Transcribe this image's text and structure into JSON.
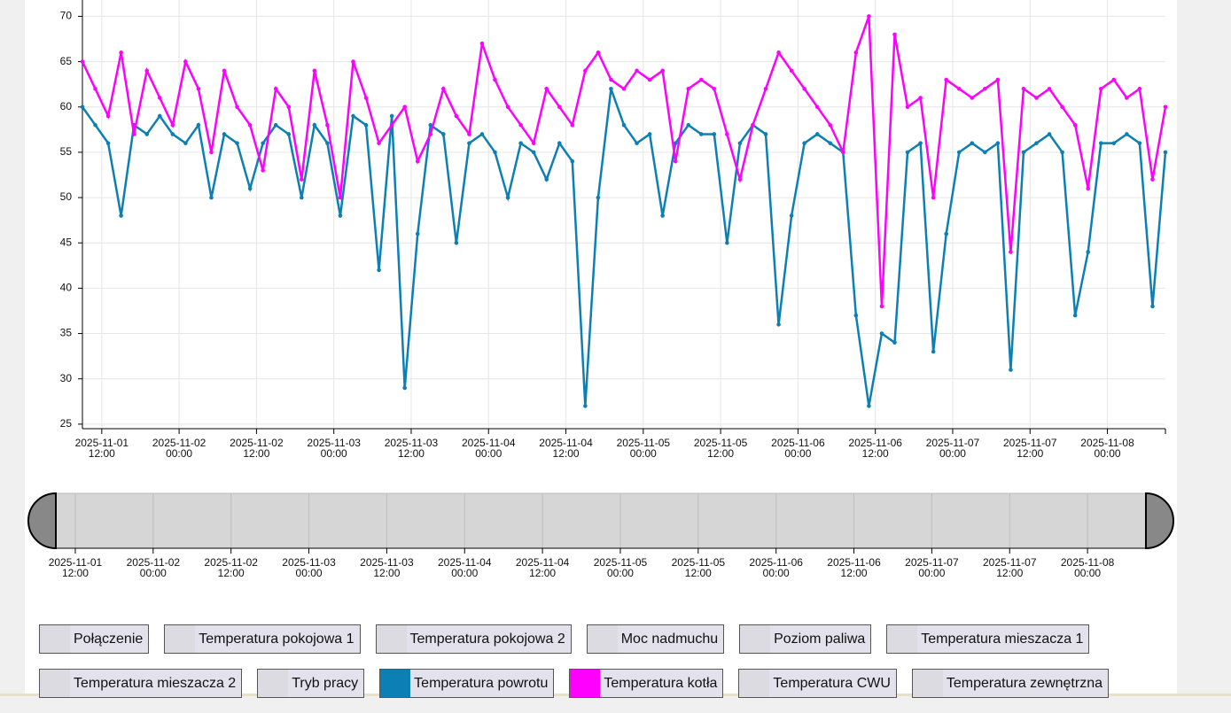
{
  "chart_data": {
    "type": "line",
    "x": [
      "2025-11-01 09:00",
      "2025-11-01 11:00",
      "2025-11-01 13:00",
      "2025-11-01 15:00",
      "2025-11-01 17:00",
      "2025-11-01 19:00",
      "2025-11-01 21:00",
      "2025-11-01 23:00",
      "2025-11-02 01:00",
      "2025-11-02 03:00",
      "2025-11-02 05:00",
      "2025-11-02 07:00",
      "2025-11-02 09:00",
      "2025-11-02 11:00",
      "2025-11-02 13:00",
      "2025-11-02 15:00",
      "2025-11-02 17:00",
      "2025-11-02 19:00",
      "2025-11-02 21:00",
      "2025-11-02 23:00",
      "2025-11-03 01:00",
      "2025-11-03 03:00",
      "2025-11-03 05:00",
      "2025-11-03 07:00",
      "2025-11-03 09:00",
      "2025-11-03 11:00",
      "2025-11-03 13:00",
      "2025-11-03 15:00",
      "2025-11-03 17:00",
      "2025-11-03 19:00",
      "2025-11-03 21:00",
      "2025-11-03 23:00",
      "2025-11-04 01:00",
      "2025-11-04 03:00",
      "2025-11-04 05:00",
      "2025-11-04 07:00",
      "2025-11-04 09:00",
      "2025-11-04 11:00",
      "2025-11-04 13:00",
      "2025-11-04 15:00",
      "2025-11-04 17:00",
      "2025-11-04 19:00",
      "2025-11-04 21:00",
      "2025-11-04 23:00",
      "2025-11-05 01:00",
      "2025-11-05 03:00",
      "2025-11-05 05:00",
      "2025-11-05 07:00",
      "2025-11-05 09:00",
      "2025-11-05 11:00",
      "2025-11-05 13:00",
      "2025-11-05 15:00",
      "2025-11-05 17:00",
      "2025-11-05 19:00",
      "2025-11-05 21:00",
      "2025-11-05 23:00",
      "2025-11-06 01:00",
      "2025-11-06 03:00",
      "2025-11-06 05:00",
      "2025-11-06 07:00",
      "2025-11-06 09:00",
      "2025-11-06 11:00",
      "2025-11-06 13:00",
      "2025-11-06 15:00",
      "2025-11-06 17:00",
      "2025-11-06 19:00",
      "2025-11-06 21:00",
      "2025-11-06 23:00",
      "2025-11-07 01:00",
      "2025-11-07 03:00",
      "2025-11-07 05:00",
      "2025-11-07 07:00",
      "2025-11-07 09:00",
      "2025-11-07 11:00",
      "2025-11-07 13:00",
      "2025-11-07 15:00",
      "2025-11-07 17:00",
      "2025-11-07 19:00",
      "2025-11-07 21:00",
      "2025-11-07 23:00",
      "2025-11-08 01:00",
      "2025-11-08 03:00",
      "2025-11-08 05:00",
      "2025-11-08 07:00",
      "2025-11-08 09:00"
    ],
    "xlim": [
      "2025-11-01 09:00",
      "2025-11-08 09:00"
    ],
    "xticks": [
      "2025-11-01 12:00",
      "2025-11-02 00:00",
      "2025-11-02 12:00",
      "2025-11-03 00:00",
      "2025-11-03 12:00",
      "2025-11-04 00:00",
      "2025-11-04 12:00",
      "2025-11-05 00:00",
      "2025-11-05 12:00",
      "2025-11-06 00:00",
      "2025-11-06 12:00",
      "2025-11-07 00:00",
      "2025-11-07 12:00",
      "2025-11-08 00:00"
    ],
    "ylim": [
      24.5,
      71.8
    ],
    "yticks": [
      25,
      30,
      35,
      40,
      45,
      50,
      55,
      60,
      65,
      70
    ],
    "grid": true,
    "series": [
      {
        "name": "Połączenie",
        "visible": false
      },
      {
        "name": "Temperatura pokojowa 1",
        "visible": false
      },
      {
        "name": "Temperatura pokojowa 2",
        "visible": false
      },
      {
        "name": "Moc nadmuchu",
        "visible": false
      },
      {
        "name": "Poziom paliwa",
        "visible": false
      },
      {
        "name": "Temperatura mieszacza 1",
        "visible": false
      },
      {
        "name": "Temperatura mieszacza 2",
        "visible": false
      },
      {
        "name": "Tryb pracy",
        "visible": false
      },
      {
        "name": "Temperatura powrotu",
        "visible": true,
        "color": "#0c7fb4",
        "values": [
          60,
          58,
          56,
          48,
          58,
          57,
          59,
          57,
          56,
          58,
          50,
          57,
          56,
          51,
          56,
          58,
          57,
          50,
          58,
          56,
          48,
          59,
          58,
          42,
          59,
          29,
          46,
          58,
          57,
          45,
          56,
          57,
          55,
          50,
          56,
          55,
          52,
          56,
          54,
          27,
          50,
          62,
          58,
          56,
          57,
          48,
          56,
          58,
          57,
          57,
          45,
          56,
          58,
          57,
          36,
          48,
          56,
          57,
          56,
          55,
          37,
          27,
          35,
          34,
          55,
          56,
          33,
          46,
          55,
          56,
          55,
          56,
          31,
          55,
          56,
          57,
          55,
          37,
          44,
          56,
          56,
          57,
          56,
          38,
          55
        ]
      },
      {
        "name": "Temperatura kotła",
        "visible": true,
        "color": "#ff00ff",
        "values": [
          65,
          62,
          59,
          66,
          57,
          64,
          61,
          58,
          65,
          62,
          55,
          64,
          60,
          58,
          53,
          62,
          60,
          52,
          64,
          58,
          50,
          65,
          61,
          56,
          58,
          60,
          54,
          57,
          62,
          59,
          57,
          67,
          63,
          60,
          58,
          56,
          62,
          60,
          58,
          64,
          66,
          63,
          62,
          64,
          63,
          64,
          54,
          62,
          63,
          62,
          57,
          52,
          58,
          62,
          66,
          64,
          62,
          60,
          58,
          55,
          66,
          70,
          38,
          68,
          60,
          61,
          50,
          63,
          62,
          61,
          62,
          63,
          44,
          62,
          61,
          62,
          60,
          58,
          51,
          62,
          63,
          61,
          62,
          52,
          60
        ]
      },
      {
        "name": "Temperatura CWU",
        "visible": false
      },
      {
        "name": "Temperatura zewnętrzna",
        "visible": false
      }
    ]
  }
}
